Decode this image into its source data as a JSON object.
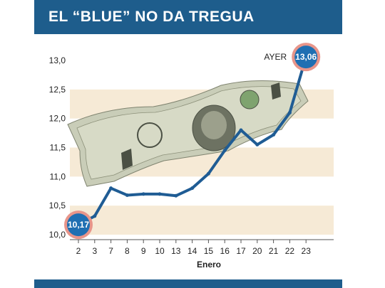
{
  "chart_data": {
    "type": "line",
    "title": "EL “BLUE” NO DA TREGUA",
    "xlabel": "Enero",
    "ylabel": "",
    "categories": [
      "2",
      "3",
      "7",
      "8",
      "9",
      "10",
      "13",
      "14",
      "15",
      "16",
      "17",
      "20",
      "21",
      "22",
      "23"
    ],
    "values": [
      10.17,
      10.32,
      10.8,
      10.68,
      10.7,
      10.7,
      10.67,
      10.8,
      11.05,
      11.45,
      11.8,
      11.55,
      11.72,
      12.1,
      13.06
    ],
    "ylim": [
      10.0,
      13.0
    ],
    "yticks": [
      "10,0",
      "10,5",
      "11,0",
      "11,5",
      "12,0",
      "12,5",
      "13,0"
    ],
    "start_label": "10,17",
    "end_label": "13,06",
    "annotation": "AYER",
    "grid": true,
    "colors": {
      "line": "#1f5c94",
      "band": "#f6ead6",
      "header": "#1e5d8c",
      "badge_fill": "#1f6fb2",
      "badge_ring": "#e8958a"
    }
  }
}
